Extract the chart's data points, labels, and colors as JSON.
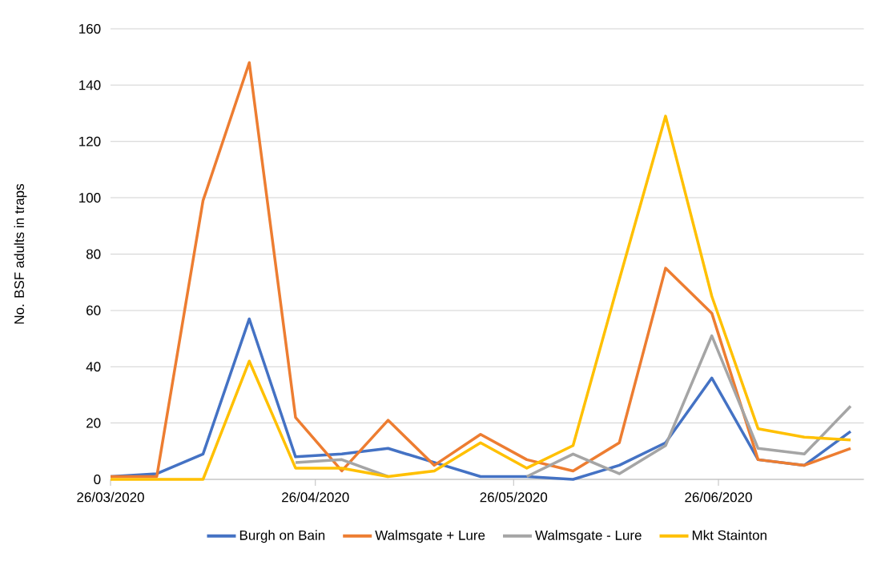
{
  "chart_data": {
    "type": "line",
    "ylabel": "No. BSF adults in traps",
    "x": [
      "2020-03-26",
      "2020-04-02",
      "2020-04-09",
      "2020-04-16",
      "2020-04-23",
      "2020-04-30",
      "2020-05-07",
      "2020-05-14",
      "2020-05-21",
      "2020-05-28",
      "2020-06-04",
      "2020-06-11",
      "2020-06-18",
      "2020-06-25",
      "2020-07-02",
      "2020-07-09",
      "2020-07-16"
    ],
    "series": [
      {
        "name": "Burgh on Bain",
        "color": "#4472c4",
        "values": [
          1,
          2,
          9,
          57,
          8,
          9,
          11,
          6,
          1,
          1,
          0,
          5,
          13,
          36,
          7,
          5,
          17
        ]
      },
      {
        "name": "Walmsgate + Lure",
        "color": "#ed7d31",
        "values": [
          1,
          1,
          99,
          148,
          22,
          3,
          21,
          5,
          16,
          7,
          3,
          13,
          75,
          59,
          7,
          5,
          11
        ]
      },
      {
        "name": "Walmsgate - Lure",
        "color": "#a5a5a5",
        "values": [
          null,
          null,
          null,
          null,
          6,
          7,
          1,
          null,
          null,
          1,
          9,
          2,
          12,
          51,
          11,
          9,
          26
        ]
      },
      {
        "name": "Mkt Stainton",
        "color": "#ffc000",
        "values": [
          0,
          0,
          0,
          42,
          4,
          4,
          1,
          3,
          13,
          4,
          12,
          71,
          129,
          65,
          18,
          15,
          14
        ]
      }
    ],
    "xlim": [
      "2020-03-26",
      "2020-07-18"
    ],
    "xticks": [
      {
        "value": "2020-03-26",
        "label": "26/03/2020"
      },
      {
        "value": "2020-04-26",
        "label": "26/04/2020"
      },
      {
        "value": "2020-05-26",
        "label": "26/05/2020"
      },
      {
        "value": "2020-06-26",
        "label": "26/06/2020"
      }
    ],
    "ylim": [
      0,
      160
    ],
    "yticks": [
      0,
      20,
      40,
      60,
      80,
      100,
      120,
      140,
      160
    ],
    "grid": "y",
    "legend": "bottom",
    "marker": "none",
    "line_style": "solid"
  }
}
